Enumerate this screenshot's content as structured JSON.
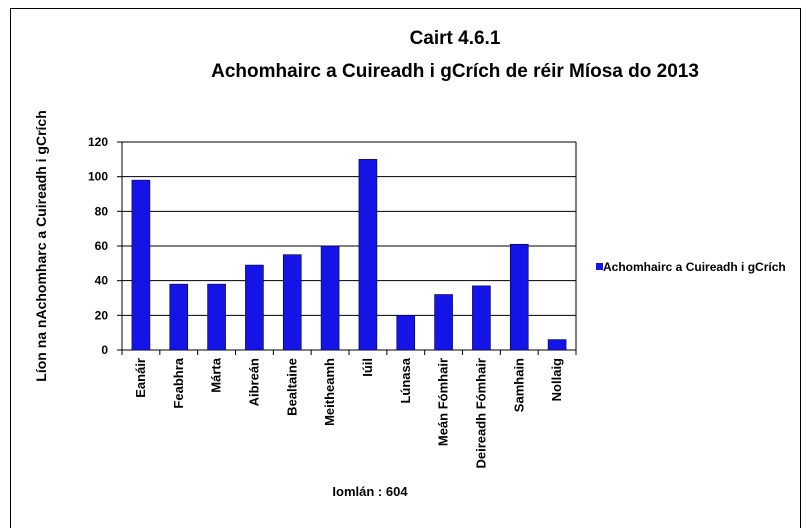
{
  "chart_data": {
    "type": "bar",
    "title": "Cairt 4.6.1",
    "subtitle": "Achomhairc a Cuireadh i gCrích de réir Míosa do 2013",
    "y_label": "Líon na nAchomharc a Cuireadh i gCrích",
    "annotation": "Iomlán : 604",
    "categories": [
      "Eanáir",
      "Feabhra",
      "Márta",
      "Aibreán",
      "Bealtaine",
      "Meitheamh",
      "Iúil",
      "Lúnasa",
      "Meán Fómhair",
      "Deireadh Fómhair",
      "Samhain",
      "Nollaig"
    ],
    "series": [
      {
        "name": "Achomhairc a Cuireadh i gCrích",
        "color": "#1414e6",
        "values": [
          98,
          38,
          38,
          49,
          55,
          60,
          110,
          20,
          32,
          37,
          61,
          6
        ]
      }
    ],
    "ylim": [
      0,
      120
    ],
    "yticks": [
      0,
      20,
      40,
      60,
      80,
      100,
      120
    ],
    "grid": true,
    "legend": "right"
  }
}
